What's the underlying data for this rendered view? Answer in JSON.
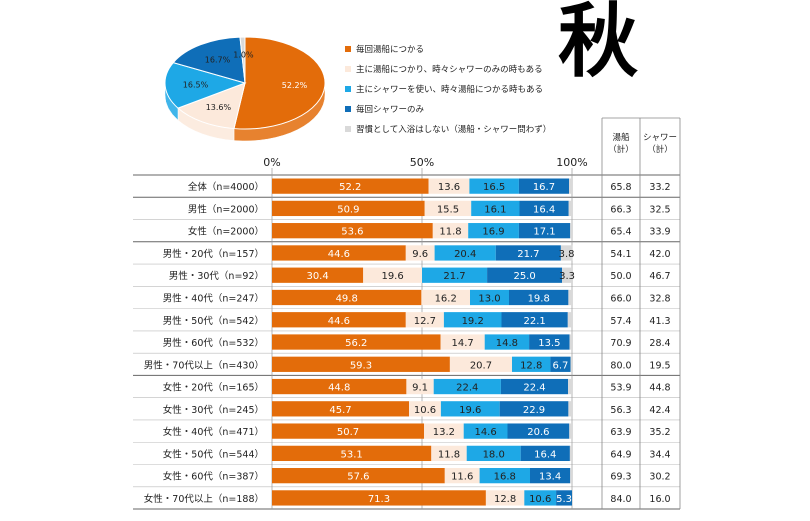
{
  "page_title": "秋",
  "colors": {
    "series1": "#E36C0A",
    "series2": "#FCE9DB",
    "series3": "#1EA8E6",
    "series4": "#0F6EB8",
    "series5": "#D9D9D9"
  },
  "chart_data": [
    {
      "type": "pie",
      "labels": [
        "毎回湯船につかる",
        "主に湯船につかり、時々シャワーのみの時もある",
        "主にシャワーを使い、時々湯船につかる時もある",
        "毎回シャワーのみ",
        "習慣として入浴はしない（湯船・シャワー問わず）"
      ],
      "values": [
        52.2,
        13.6,
        16.5,
        16.7,
        1.0
      ],
      "value_labels": [
        "52.2%",
        "13.6%",
        "16.5%",
        "16.7%",
        "1.0%"
      ]
    },
    {
      "type": "bar",
      "orientation": "horizontal",
      "stacked": true,
      "xlim": [
        0,
        100
      ],
      "x_ticks": [
        "0%",
        "50%",
        "100%"
      ],
      "categories": [
        "全体（n=4000）",
        "男性（n=2000）",
        "女性（n=2000）",
        "男性・20代（n=157）",
        "男性・30代（n=92）",
        "男性・40代（n=247）",
        "男性・50代（n=542）",
        "男性・60代（n=532）",
        "男性・70代以上（n=430）",
        "女性・20代（n=165）",
        "女性・30代（n=245）",
        "女性・40代（n=471）",
        "女性・50代（n=544）",
        "女性・60代（n=387）",
        "女性・70代以上（n=188）"
      ],
      "series": [
        {
          "name": "毎回湯船につかる",
          "values": [
            52.2,
            50.9,
            53.6,
            44.6,
            30.4,
            49.8,
            44.6,
            56.2,
            59.3,
            44.8,
            45.7,
            50.7,
            53.1,
            57.6,
            71.3
          ]
        },
        {
          "name": "主に湯船につかり、時々シャワーのみの時もある",
          "values": [
            13.6,
            15.5,
            11.8,
            9.6,
            19.6,
            16.2,
            12.7,
            14.7,
            20.7,
            9.1,
            10.6,
            13.2,
            11.8,
            11.6,
            12.8
          ]
        },
        {
          "name": "主にシャワーを使い、時々湯船につかる時もある",
          "values": [
            16.5,
            16.1,
            16.9,
            20.4,
            21.7,
            13.0,
            19.2,
            14.8,
            12.8,
            22.4,
            19.6,
            14.6,
            18.0,
            16.8,
            10.6
          ]
        },
        {
          "name": "毎回シャワーのみ",
          "values": [
            16.7,
            16.4,
            17.1,
            21.7,
            25.0,
            19.8,
            22.1,
            13.5,
            6.7,
            22.4,
            22.9,
            20.6,
            16.4,
            13.4,
            5.3
          ]
        },
        {
          "name": "習慣として入浴はしない（湯船・シャワー問わず）",
          "values": [
            1.0,
            1.1,
            0.6,
            3.8,
            3.3,
            1.2,
            1.4,
            0.8,
            0.5,
            1.3,
            1.2,
            0.9,
            0.7,
            0.6,
            0.0
          ]
        }
      ],
      "value_labels": [
        [
          "52.2",
          "13.6",
          "16.5",
          "16.7",
          ""
        ],
        [
          "50.9",
          "15.5",
          "16.1",
          "16.4",
          ""
        ],
        [
          "53.6",
          "11.8",
          "16.9",
          "17.1",
          ""
        ],
        [
          "44.6",
          "9.6",
          "20.4",
          "21.7",
          "3.8"
        ],
        [
          "30.4",
          "19.6",
          "21.7",
          "25.0",
          "3.3"
        ],
        [
          "49.8",
          "16.2",
          "13.0",
          "19.8",
          ""
        ],
        [
          "44.6",
          "12.7",
          "19.2",
          "22.1",
          ""
        ],
        [
          "56.2",
          "14.7",
          "14.8",
          "13.5",
          ""
        ],
        [
          "59.3",
          "20.7",
          "12.8",
          "6.7",
          ""
        ],
        [
          "44.8",
          "9.1",
          "22.4",
          "22.4",
          ""
        ],
        [
          "45.7",
          "10.6",
          "19.6",
          "22.9",
          ""
        ],
        [
          "50.7",
          "13.2",
          "14.6",
          "20.6",
          ""
        ],
        [
          "53.1",
          "11.8",
          "18.0",
          "16.4",
          ""
        ],
        [
          "57.6",
          "11.6",
          "16.8",
          "13.4",
          ""
        ],
        [
          "71.3",
          "12.8",
          "10.6",
          "5.3",
          ""
        ]
      ],
      "totals_header": [
        "湯船",
        "（計）",
        "シャワー",
        "（計）"
      ],
      "totals": [
        [
          "65.8",
          "33.2"
        ],
        [
          "66.3",
          "32.5"
        ],
        [
          "65.4",
          "33.9"
        ],
        [
          "54.1",
          "42.0"
        ],
        [
          "50.0",
          "46.7"
        ],
        [
          "66.0",
          "32.8"
        ],
        [
          "57.4",
          "41.3"
        ],
        [
          "70.9",
          "28.4"
        ],
        [
          "80.0",
          "19.5"
        ],
        [
          "53.9",
          "44.8"
        ],
        [
          "56.3",
          "42.4"
        ],
        [
          "63.9",
          "35.2"
        ],
        [
          "64.9",
          "34.4"
        ],
        [
          "69.3",
          "30.2"
        ],
        [
          "84.0",
          "16.0"
        ]
      ]
    }
  ]
}
